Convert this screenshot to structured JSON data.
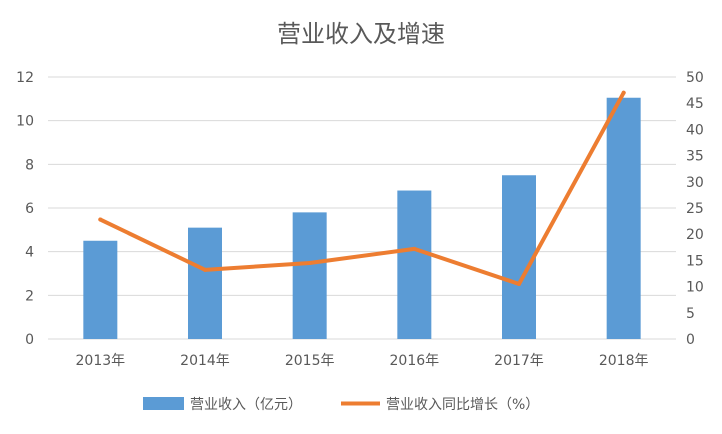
{
  "chart_data": {
    "type": "bar",
    "title": "营业收入及增速",
    "categories": [
      "2013年",
      "2014年",
      "2015年",
      "2016年",
      "2017年",
      "2018年"
    ],
    "series": [
      {
        "name": "营业收入（亿元）",
        "type": "bar",
        "axis": "left",
        "values": [
          4.5,
          5.1,
          5.8,
          6.8,
          7.5,
          11.05
        ]
      },
      {
        "name": "营业收入同比增长（%）",
        "type": "line",
        "axis": "right",
        "values": [
          22.8,
          13.2,
          14.5,
          17.2,
          10.5,
          47.0
        ]
      }
    ],
    "ylim_left": [
      0,
      12
    ],
    "yticks_left": [
      0,
      2,
      4,
      6,
      8,
      10,
      12
    ],
    "ylim_right": [
      0,
      50
    ],
    "yticks_right": [
      0,
      5,
      10,
      15,
      20,
      25,
      30,
      35,
      40,
      45,
      50
    ],
    "grid": true,
    "legend": "bottom",
    "colors": {
      "bar": "#5B9BD5",
      "line": "#ED7D31",
      "grid": "#D9D9D9",
      "text": "#595959"
    }
  }
}
